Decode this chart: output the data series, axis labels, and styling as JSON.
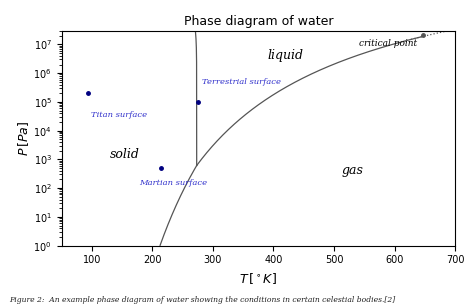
{
  "title": "Phase diagram of water",
  "xlabel": "$T\\,[^\\circ K]$",
  "ylabel": "$P\\,[Pa]$",
  "xlim": [
    50,
    700
  ],
  "ylim": [
    1,
    30000000.0
  ],
  "caption": "Figure 2:  An example phase diagram of water showing the conditions in certain celestial bodies.[2]",
  "label_color": "#3333CC",
  "line_color": "#555555",
  "dot_color": "#000080",
  "triple_T": 273.16,
  "triple_P": 611.73,
  "critical_T": 647.1,
  "critical_P": 22060000.0,
  "titan_T": 94,
  "titan_P": 200000.0,
  "terrestrial_T": 275,
  "terrestrial_P": 100000.0,
  "martian_T": 215,
  "martian_P": 500
}
